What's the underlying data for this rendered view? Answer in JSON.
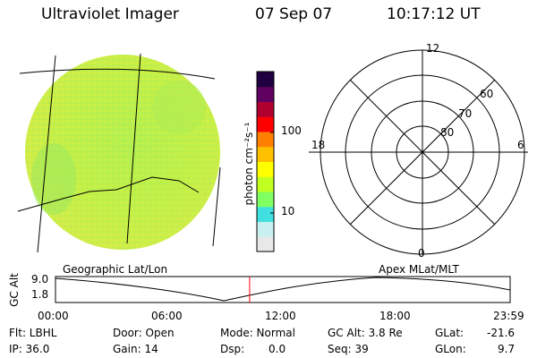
{
  "header": {
    "instrument": "Ultraviolet Imager",
    "date": "07 Sep 07",
    "time": "10:17:12 UT"
  },
  "colorbar": {
    "unit_label": "photon cm⁻²s⁻¹",
    "tick_100": "100",
    "tick_10": "10",
    "colors": [
      "#e8e8e8",
      "#c8f0f0",
      "#40e0e0",
      "#80ff60",
      "#c0ff20",
      "#ffff00",
      "#ffc000",
      "#ff8000",
      "#ff0000",
      "#b00030",
      "#600060",
      "#200040"
    ]
  },
  "polar": {
    "mlt_top": "12",
    "mlt_left": "18",
    "mlt_right": "6",
    "mlt_bottom": "0",
    "lat_60": "60",
    "lat_70": "70",
    "lat_80": "80"
  },
  "labels": {
    "geo": "Geographic Lat/Lon",
    "apex": "Apex MLat/MLT"
  },
  "altitude_plot": {
    "axis_label": "GC Alt",
    "y_max": "9.0",
    "y_min": "1.8",
    "x_ticks": [
      "00:00",
      "06:00",
      "12:00",
      "18:00",
      "23:59"
    ],
    "current_time_fraction": 0.427,
    "marker_color": "#ff0000"
  },
  "info": {
    "flt": "Flt: LBHL",
    "ip": "IP: 36.0",
    "door": "Door: Open",
    "gain": "Gain: 14",
    "mode": "Mode: Normal",
    "dsp_label": "Dsp:",
    "dsp_value": "0.0",
    "gcalt": "GC Alt: 3.8 Re",
    "seq": "Seq: 39",
    "glat_label": "GLat:",
    "glat_value": "-21.6",
    "glon_label": "GLon:",
    "glon_value": "9.7"
  }
}
